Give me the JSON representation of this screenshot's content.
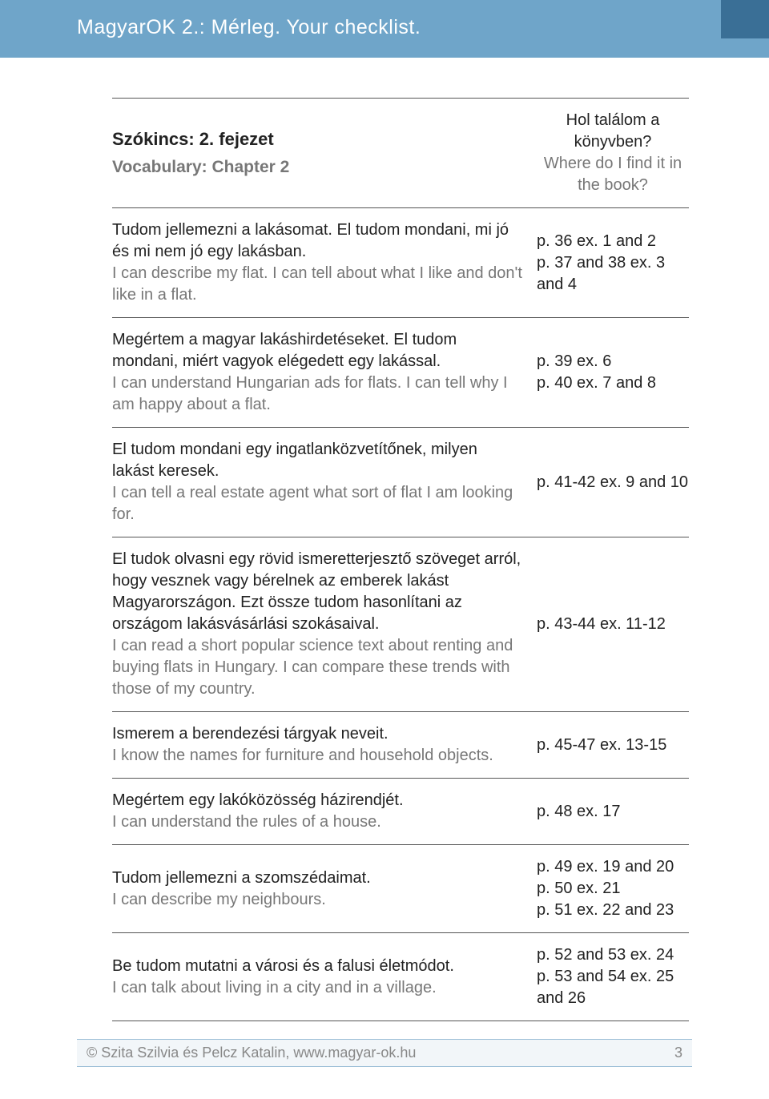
{
  "header": {
    "title": "MagyarOK 2.: Mérleg. Your checklist."
  },
  "chapter": {
    "title_hu": "Szókincs: 2. fejezet",
    "title_en": "Vocabulary: Chapter 2",
    "where_hu": "Hol találom a könyvben?",
    "where_en": "Where do I find it in the book?"
  },
  "rows": [
    {
      "hu": "Tudom jellemezni a lakásomat. El tudom mondani, mi jó és mi nem jó egy lakásban.",
      "en": "I can describe my flat. I can tell about what I like and don't like in a flat.",
      "ref": "p. 36 ex. 1 and 2\np. 37 and 38 ex. 3 and 4"
    },
    {
      "hu": "Megértem a magyar lakáshirdetéseket. El tudom mondani, miért vagyok elégedett egy lakással.",
      "en": "I can understand Hungarian ads for flats. I can tell why I am happy about a flat.",
      "ref": "p. 39 ex. 6\np. 40 ex. 7 and 8"
    },
    {
      "hu": "El tudom mondani egy ingatlanközvetítőnek, milyen lakást keresek.",
      "en": "I can tell a real estate agent what sort of flat I am looking for.",
      "ref": "p. 41-42 ex. 9 and 10"
    },
    {
      "hu": "El tudok olvasni egy rövid ismeretterjesztő szöveget arról, hogy vesznek vagy bérelnek az emberek lakást Magyarországon. Ezt össze tudom hasonlítani az országom lakásvásárlási szokásaival.",
      "en": "I can read a short popular science text about renting and buying flats in Hungary. I can compare these trends with those of my country.",
      "ref": "p. 43-44 ex. 11-12"
    },
    {
      "hu": "Ismerem a berendezési tárgyak neveit.",
      "en": "I know the names for furniture and household objects.",
      "ref": "p. 45-47 ex. 13-15"
    },
    {
      "hu": "Megértem egy lakóközösség házirendjét.",
      "en": "I can understand the rules of a house.",
      "ref": "p. 48 ex. 17"
    },
    {
      "hu": "Tudom jellemezni a szomszédaimat.",
      "en": "I can describe my neighbours.",
      "ref": "p. 49 ex. 19 and 20\np. 50 ex. 21\np. 51 ex. 22 and 23"
    },
    {
      "hu": "Be tudom mutatni a városi és a falusi életmódot.",
      "en": "I can talk about living in a city and in a village.",
      "ref": "p. 52 and 53 ex. 24\np. 53 and 54 ex. 25 and 26"
    }
  ],
  "footer": {
    "credit": "©   Szita Szilvia és Pelcz Katalin, www.magyar-ok.hu",
    "page": "3"
  },
  "colors": {
    "header_bg": "#6fa5c9",
    "header_corner": "#3a6f96",
    "muted_text": "#777777",
    "rule": "#555555",
    "footer_bg": "#f2f6f9",
    "footer_border": "#9bbed6"
  }
}
